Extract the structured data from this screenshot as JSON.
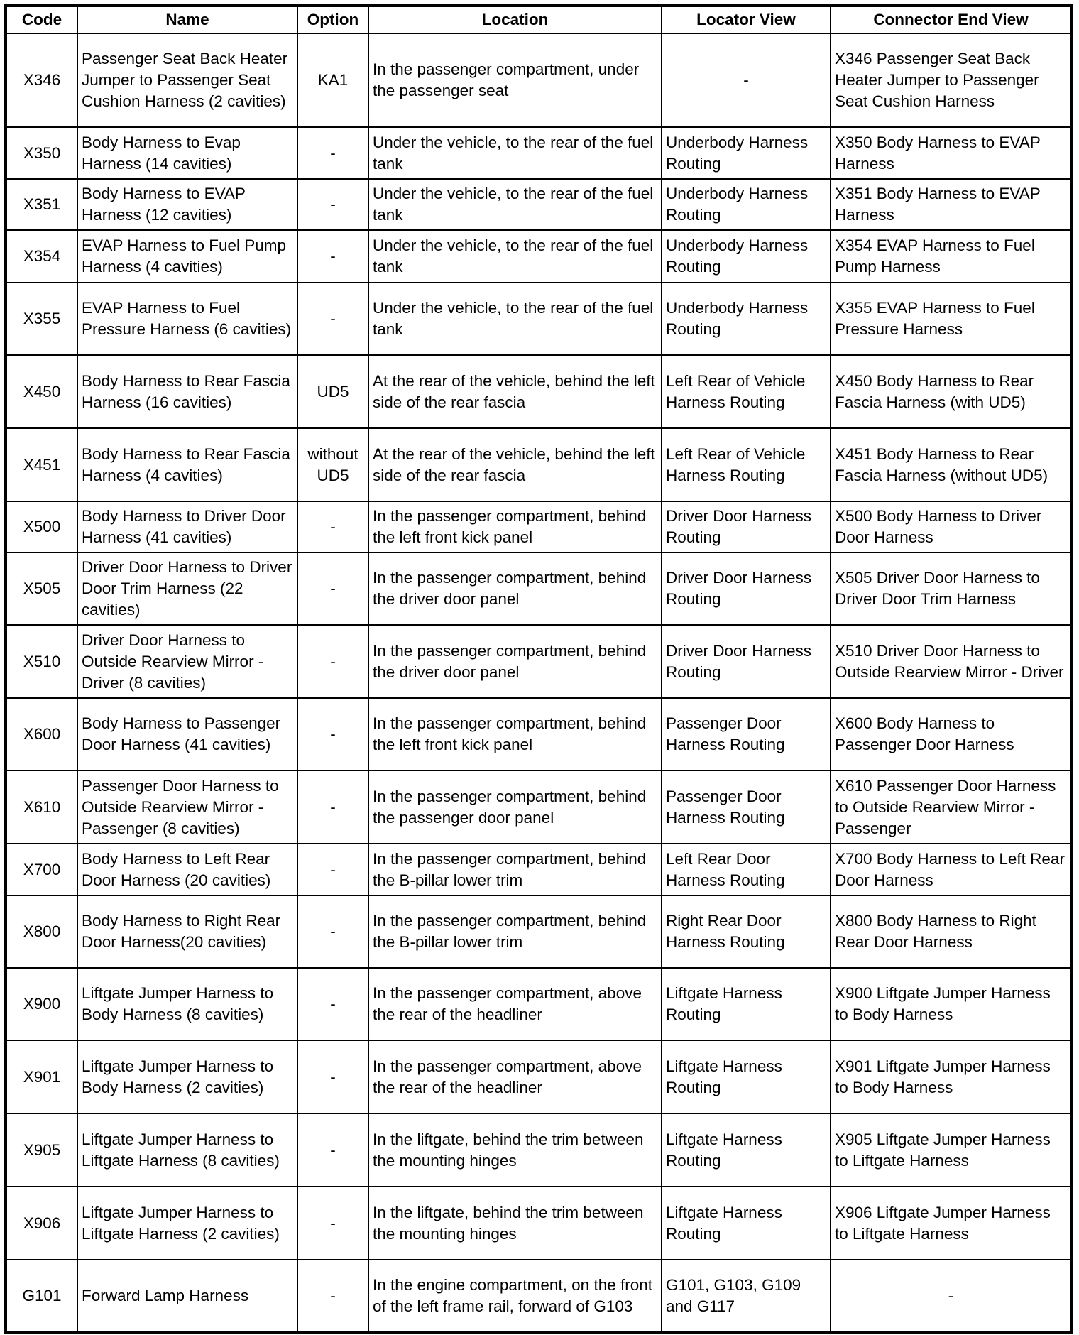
{
  "headers": [
    "Code",
    "Name",
    "Option",
    "Location",
    "Locator View",
    "Connector End View"
  ],
  "rows": [
    [
      "X346",
      "Passenger Seat Back Heater Jumper to Passenger Seat Cushion Harness (2 cavities)",
      "KA1",
      "In the passenger compartment, under the passenger seat",
      "-",
      "X346 Passenger Seat Back Heater Jumper to Passenger Seat Cushion Harness"
    ],
    [
      "X350",
      "Body Harness to Evap Harness (14 cavities)",
      "-",
      "Under the vehicle, to the rear of the fuel tank",
      "Underbody Harness Routing",
      "X350 Body Harness to EVAP Harness"
    ],
    [
      "X351",
      "Body Harness to EVAP Harness (12 cavities)",
      "-",
      "Under the vehicle, to the rear of the fuel tank",
      "Underbody Harness Routing",
      "X351 Body Harness to EVAP Harness"
    ],
    [
      "X354",
      "EVAP Harness to Fuel Pump Harness (4 cavities)",
      "-",
      "Under the vehicle, to the rear of the fuel tank",
      "Underbody Harness Routing",
      "X354 EVAP Harness to Fuel Pump Harness"
    ],
    [
      "X355",
      "EVAP Harness to Fuel Pressure Harness (6 cavities)",
      "-",
      "Under the vehicle, to the rear of the fuel tank",
      "Underbody Harness Routing",
      "X355 EVAP Harness to Fuel Pressure Harness"
    ],
    [
      "X450",
      "Body Harness to Rear Fascia Harness (16 cavities)",
      "UD5",
      "At the rear of the vehicle, behind the left side of the rear fascia",
      "Left Rear of Vehicle Harness Routing",
      "X450 Body Harness to Rear Fascia Harness (with UD5)"
    ],
    [
      "X451",
      "Body Harness to Rear Fascia Harness (4 cavities)",
      "without UD5",
      "At the rear of the vehicle, behind the left side of the rear fascia",
      "Left Rear of Vehicle Harness Routing",
      "X451 Body Harness to Rear Fascia Harness (without UD5)"
    ],
    [
      "X500",
      "Body Harness to Driver Door Harness (41 cavities)",
      "-",
      "In the passenger compartment, behind the left front kick panel",
      "Driver Door Harness Routing",
      "X500 Body Harness to Driver Door Harness"
    ],
    [
      "X505",
      "Driver Door Harness to Driver Door Trim Harness (22 cavities)",
      "-",
      "In the passenger compartment, behind the driver door panel",
      "Driver Door Harness Routing",
      "X505 Driver Door Harness to Driver Door Trim Harness"
    ],
    [
      "X510",
      "Driver Door Harness to Outside Rearview Mirror - Driver (8 cavities)",
      "-",
      "In the passenger compartment, behind the driver door panel",
      "Driver Door Harness Routing",
      "X510 Driver Door Harness to Outside Rearview Mirror - Driver"
    ],
    [
      "X600",
      "Body Harness to Passenger Door Harness (41 cavities)",
      "-",
      "In the passenger compartment, behind the left front kick panel",
      "Passenger Door Harness Routing",
      "X600 Body Harness to Passenger Door Harness"
    ],
    [
      "X610",
      "Passenger Door Harness to Outside Rearview Mirror - Passenger (8 cavities)",
      "-",
      "In the passenger compartment, behind the passenger door panel",
      "Passenger Door Harness Routing",
      "X610 Passenger Door Harness to Outside Rearview Mirror - Passenger"
    ],
    [
      "X700",
      "Body Harness to Left Rear Door Harness (20 cavities)",
      "-",
      "In the passenger compartment, behind the B-pillar lower trim",
      "Left Rear Door Harness Routing",
      "X700 Body Harness to Left Rear Door Harness"
    ],
    [
      "X800",
      "Body Harness to Right Rear Door Harness(20 cavities)",
      "-",
      "In the passenger compartment, behind the B-pillar lower trim",
      "Right Rear Door Harness Routing",
      "X800 Body Harness to Right Rear Door Harness"
    ],
    [
      "X900",
      "Liftgate Jumper Harness to Body Harness (8 cavities)",
      "-",
      "In the passenger compartment, above the rear of the headliner",
      "Liftgate Harness Routing",
      "X900 Liftgate Jumper Harness to Body Harness"
    ],
    [
      "X901",
      "Liftgate Jumper Harness to Body Harness (2 cavities)",
      "-",
      "In the passenger compartment, above the rear of the headliner",
      "Liftgate Harness Routing",
      "X901 Liftgate Jumper Harness to Body Harness"
    ],
    [
      "X905",
      "Liftgate Jumper Harness to Liftgate Harness (8 cavities)",
      "-",
      "In the liftgate, behind the trim between the mounting hinges",
      "Liftgate Harness Routing",
      "X905 Liftgate Jumper Harness to Liftgate Harness"
    ],
    [
      "X906",
      "Liftgate Jumper Harness to Liftgate Harness (2 cavities)",
      "-",
      "In the liftgate, behind the trim between the mounting hinges",
      "Liftgate Harness Routing",
      "X906 Liftgate Jumper Harness to Liftgate Harness"
    ],
    [
      "G101",
      "Forward Lamp Harness",
      "-",
      "In the engine compartment, on the front of the left frame rail, forward of G103",
      "G101, G103, G109 and G117",
      "-"
    ]
  ]
}
